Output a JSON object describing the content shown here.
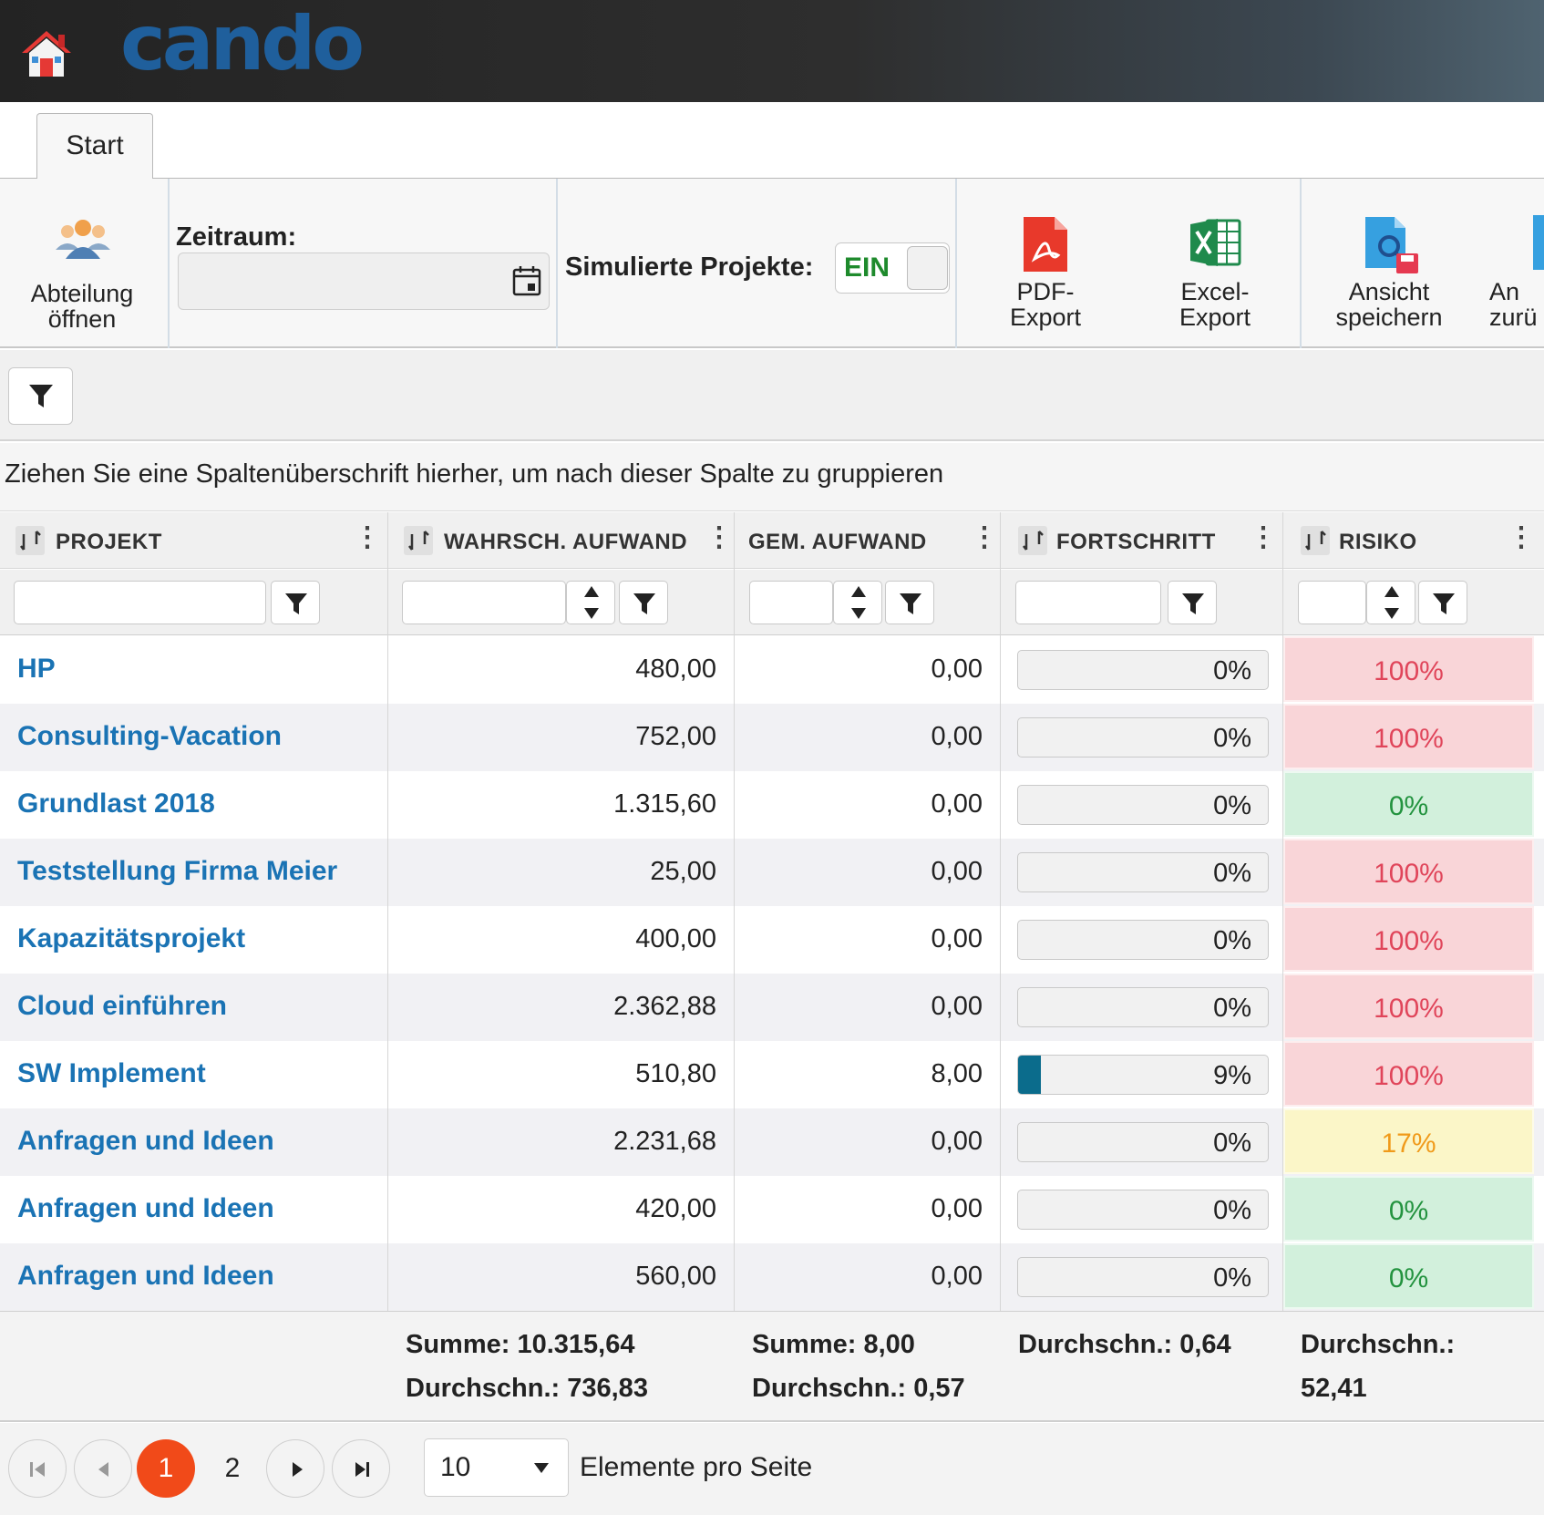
{
  "app": {
    "logo_text": "cando"
  },
  "tabs": [
    {
      "label": "Start"
    }
  ],
  "ribbon": {
    "department_button": {
      "line1": "Abteilung",
      "line2": "öffnen"
    },
    "period": {
      "label": "Zeitraum:",
      "value": ""
    },
    "simulated_projects": {
      "label": "Simulierte Projekte:",
      "toggle_text": "EIN"
    },
    "pdf_export": {
      "line1": "PDF-",
      "line2": "Export"
    },
    "excel_export": {
      "line1": "Excel-",
      "line2": "Export"
    },
    "save_view": {
      "line1": "Ansicht",
      "line2": "speichern"
    },
    "reset_view": {
      "line1": "An",
      "line2": "zurü"
    }
  },
  "grid": {
    "group_hint": "Ziehen Sie eine Spaltenüberschrift hierher, um nach dieser Spalte zu gruppieren",
    "columns": [
      {
        "label": "PROJEKT"
      },
      {
        "label": "WAHRSCH. AUFWAND"
      },
      {
        "label": "GEM. AUFWAND"
      },
      {
        "label": "FORTSCHRITT"
      },
      {
        "label": "RISIKO"
      }
    ],
    "rows": [
      {
        "project": "HP",
        "prob_effort": "480,00",
        "reported_effort": "0,00",
        "progress_text": "0%",
        "progress": 0,
        "risk": "100%",
        "risk_level": "high"
      },
      {
        "project": "Consulting-Vacation",
        "prob_effort": "752,00",
        "reported_effort": "0,00",
        "progress_text": "0%",
        "progress": 0,
        "risk": "100%",
        "risk_level": "high"
      },
      {
        "project": "Grundlast 2018",
        "prob_effort": "1.315,60",
        "reported_effort": "0,00",
        "progress_text": "0%",
        "progress": 0,
        "risk": "0%",
        "risk_level": "low"
      },
      {
        "project": "Teststellung Firma Meier",
        "prob_effort": "25,00",
        "reported_effort": "0,00",
        "progress_text": "0%",
        "progress": 0,
        "risk": "100%",
        "risk_level": "high"
      },
      {
        "project": "Kapazitätsprojekt",
        "prob_effort": "400,00",
        "reported_effort": "0,00",
        "progress_text": "0%",
        "progress": 0,
        "risk": "100%",
        "risk_level": "high"
      },
      {
        "project": "Cloud einführen",
        "prob_effort": "2.362,88",
        "reported_effort": "0,00",
        "progress_text": "0%",
        "progress": 0,
        "risk": "100%",
        "risk_level": "high"
      },
      {
        "project": "SW Implement",
        "prob_effort": "510,80",
        "reported_effort": "8,00",
        "progress_text": "9%",
        "progress": 9,
        "risk": "100%",
        "risk_level": "high"
      },
      {
        "project": "Anfragen und Ideen",
        "prob_effort": "2.231,68",
        "reported_effort": "0,00",
        "progress_text": "0%",
        "progress": 0,
        "risk": "17%",
        "risk_level": "medium"
      },
      {
        "project": "Anfragen und Ideen",
        "prob_effort": "420,00",
        "reported_effort": "0,00",
        "progress_text": "0%",
        "progress": 0,
        "risk": "0%",
        "risk_level": "low"
      },
      {
        "project": "Anfragen und Ideen",
        "prob_effort": "560,00",
        "reported_effort": "0,00",
        "progress_text": "0%",
        "progress": 0,
        "risk": "0%",
        "risk_level": "low"
      }
    ],
    "footer": {
      "prob_effort_sum": "Summe: 10.315,64",
      "prob_effort_avg": "Durchschn.: 736,83",
      "reported_effort_sum": "Summe: 8,00",
      "reported_effort_avg": "Durchschn.: 0,57",
      "progress_avg": "Durchschn.: 0,64",
      "risk_avg_label": "Durchschn.:",
      "risk_avg_value": "52,41"
    }
  },
  "pager": {
    "pages": [
      "1",
      "2"
    ],
    "current": "1",
    "page_size": "10",
    "page_size_label": "Elemente pro Seite"
  },
  "colors": {
    "link": "#1a73b4",
    "risk_high_bg": "#f9d5d8",
    "risk_high_text": "#e0455a",
    "risk_low_bg": "#d2f0dc",
    "risk_low_text": "#23933f",
    "risk_medium_bg": "#fbf6c8",
    "risk_medium_text": "#f09a1a",
    "progress_fill": "#0b6c8c",
    "pager_active": "#f14a19"
  },
  "icons": {
    "home": "house-icon",
    "department": "people-icon",
    "calendar": "calendar-icon",
    "pdf": "pdf-file-icon",
    "excel": "excel-file-icon",
    "save_view": "save-view-icon",
    "filter": "funnel-icon",
    "sort": "sort-icon",
    "menu": "kebab-menu-icon"
  }
}
